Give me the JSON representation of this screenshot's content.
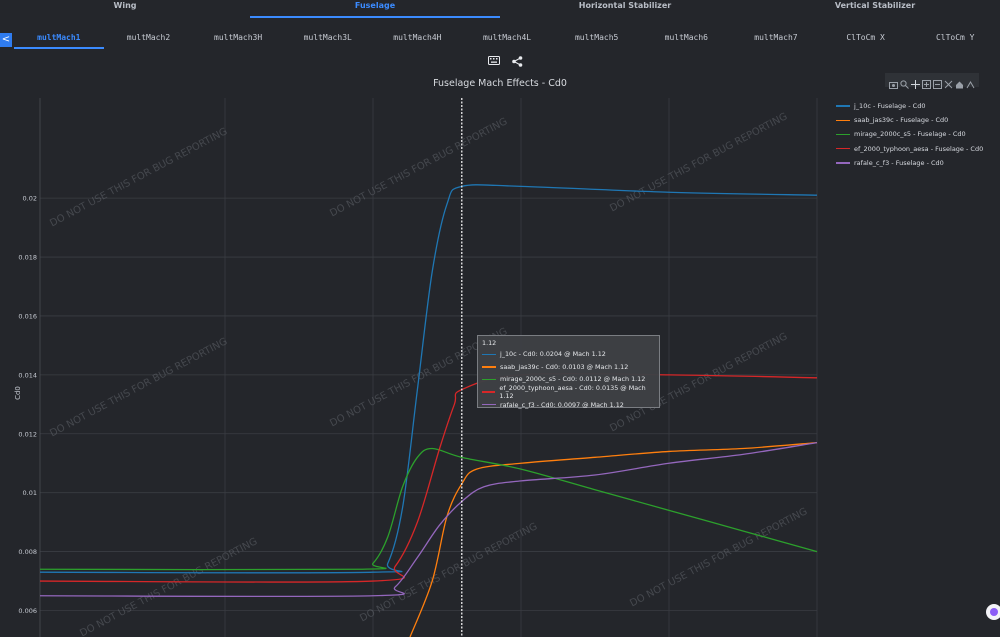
{
  "top_tabs": [
    {
      "label": "Wing",
      "active": false
    },
    {
      "label": "Fuselage",
      "active": true
    },
    {
      "label": "Horizontal Stabilizer",
      "active": false
    },
    {
      "label": "Vertical Stabilizer",
      "active": false
    }
  ],
  "collapse_label": "<",
  "sub_tabs": [
    {
      "label": "multMach1",
      "active": true
    },
    {
      "label": "multMach2",
      "active": false
    },
    {
      "label": "multMach3H",
      "active": false
    },
    {
      "label": "multMach3L",
      "active": false
    },
    {
      "label": "multMach4H",
      "active": false
    },
    {
      "label": "multMach4L",
      "active": false
    },
    {
      "label": "multMach5",
      "active": false
    },
    {
      "label": "multMach6",
      "active": false
    },
    {
      "label": "multMach7",
      "active": false
    },
    {
      "label": "ClToCm X",
      "active": false
    },
    {
      "label": "ClToCm Y",
      "active": false
    }
  ],
  "toolbar_icons": [
    "keyboard-icon",
    "share-icon"
  ],
  "modebar_icons": [
    "camera-icon",
    "zoom-icon",
    "pan-icon",
    "zoom-in-icon",
    "zoom-out-icon",
    "autoscale-icon",
    "reset-axes-icon",
    "spike-lines-icon"
  ],
  "watermark": "DO NOT USE THIS FOR BUG REPORTING",
  "chart_data": {
    "type": "line",
    "title": "Fuselage Mach Effects - Cd0",
    "xlabel": "",
    "ylabel": "Cd0",
    "xlim": [
      0.55,
      1.6
    ],
    "ylim": [
      0.0051,
      0.0234
    ],
    "yticks": [
      0.006,
      0.008,
      0.01,
      0.012,
      0.014,
      0.016,
      0.018,
      0.02
    ],
    "ytick_labels": [
      "0.006",
      "0.008",
      "0.01",
      "0.012",
      "0.014",
      "0.016",
      "0.018",
      "0.02"
    ],
    "x_gridlines": [
      0.8,
      1.0,
      1.2,
      1.4,
      1.6
    ],
    "hover_x": 1.12,
    "legend_position": "right",
    "series": [
      {
        "name": "j_10c - Fuselage - Cd0",
        "color": "#1f77b4",
        "x": [
          0.55,
          1.0,
          1.02,
          1.04,
          1.06,
          1.08,
          1.1,
          1.12,
          1.2,
          1.4,
          1.6
        ],
        "y": [
          0.0073,
          0.0073,
          0.0076,
          0.0095,
          0.0135,
          0.0175,
          0.0198,
          0.0204,
          0.0204,
          0.0202,
          0.0201
        ]
      },
      {
        "name": "saab_jas39c - Fuselage - Cd0",
        "color": "#ff7f0e",
        "x": [
          1.05,
          1.08,
          1.1,
          1.12,
          1.14,
          1.2,
          1.3,
          1.4,
          1.5,
          1.6
        ],
        "y": [
          0.0051,
          0.007,
          0.0092,
          0.0103,
          0.0108,
          0.011,
          0.0112,
          0.0114,
          0.0115,
          0.0117
        ]
      },
      {
        "name": "mirage_2000c_s5 - Fuselage - Cd0",
        "color": "#2ca02c",
        "x": [
          0.55,
          0.98,
          1.0,
          1.02,
          1.04,
          1.06,
          1.08,
          1.12,
          1.2,
          1.3,
          1.4,
          1.5,
          1.6
        ],
        "y": [
          0.0074,
          0.0074,
          0.0076,
          0.0085,
          0.0102,
          0.0112,
          0.0115,
          0.0112,
          0.0108,
          0.0101,
          0.0094,
          0.0087,
          0.008
        ]
      },
      {
        "name": "ef_2000_typhoon_aesa - Fuselage - Cd0",
        "color": "#d62728",
        "x": [
          0.55,
          1.0,
          1.03,
          1.06,
          1.09,
          1.11,
          1.12,
          1.2,
          1.4,
          1.6
        ],
        "y": [
          0.007,
          0.007,
          0.0075,
          0.009,
          0.0115,
          0.013,
          0.0135,
          0.014,
          0.014,
          0.0139
        ]
      },
      {
        "name": "rafale_c_f3 - Fuselage - Cd0",
        "color": "#9467bd",
        "x": [
          0.55,
          1.0,
          1.03,
          1.06,
          1.09,
          1.12,
          1.15,
          1.2,
          1.3,
          1.4,
          1.5,
          1.6
        ],
        "y": [
          0.0065,
          0.0065,
          0.0068,
          0.0078,
          0.0089,
          0.0097,
          0.0102,
          0.0104,
          0.0106,
          0.011,
          0.0113,
          0.0117
        ]
      }
    ]
  },
  "tooltip": {
    "header": "1.12",
    "rows": [
      {
        "text": "j_10c - Cd0: 0.0204 @ Mach 1.12",
        "color": "#1f77b4"
      },
      {
        "text": "saab_jas39c - Cd0: 0.0103 @ Mach 1.12",
        "color": "#ff7f0e"
      },
      {
        "text": "mirage_2000c_s5 - Cd0: 0.0112 @ Mach 1.12",
        "color": "#2ca02c"
      },
      {
        "text": "ef_2000_typhoon_aesa - Cd0: 0.0135 @ Mach 1.12",
        "color": "#d62728"
      },
      {
        "text": "rafale_c_f3 - Cd0: 0.0097 @ Mach 1.12",
        "color": "#9467bd"
      }
    ]
  }
}
